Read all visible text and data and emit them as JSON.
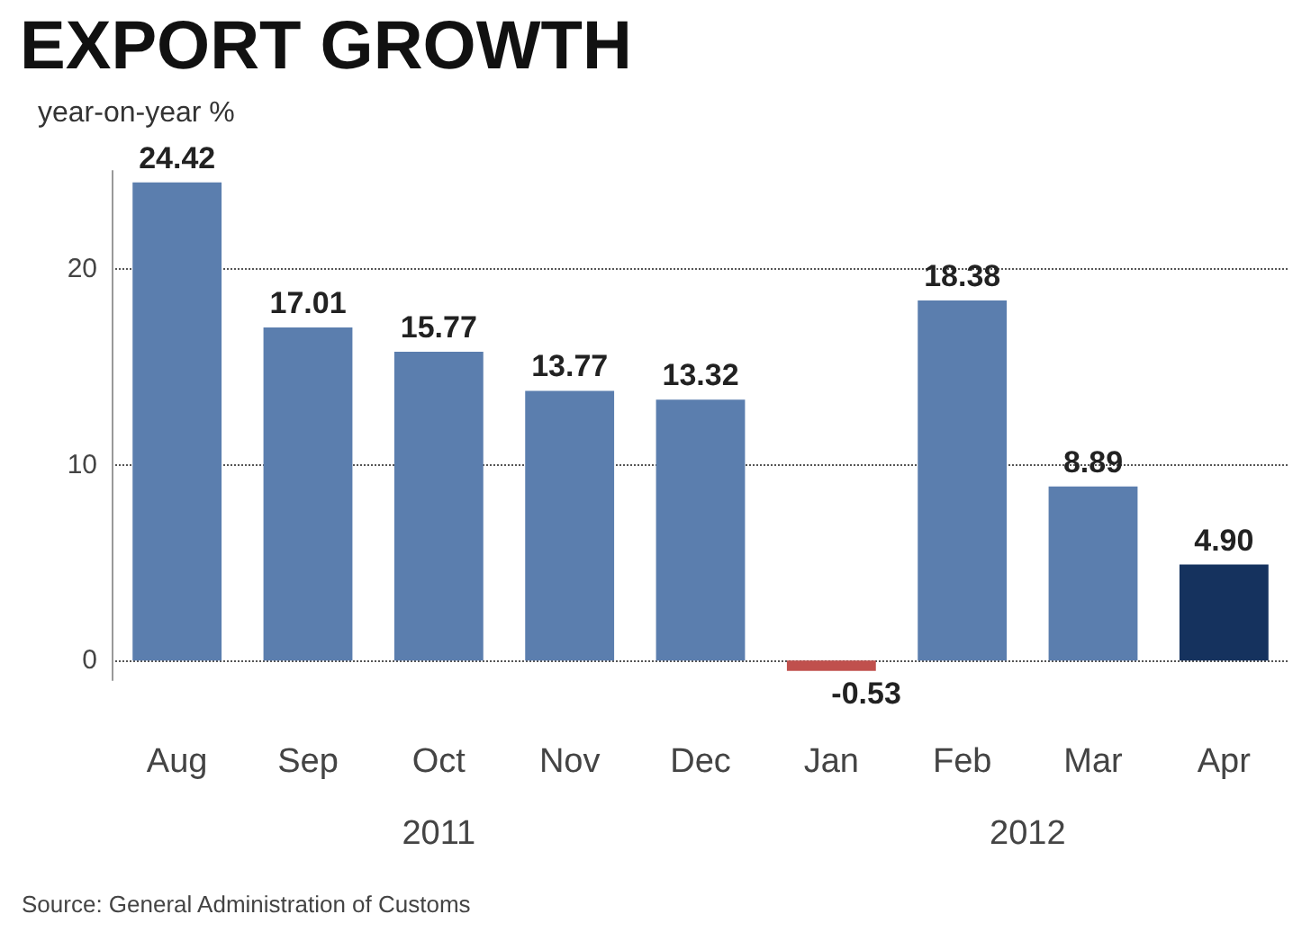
{
  "chart_data": {
    "type": "bar",
    "title": "EXPORT GROWTH",
    "subtitle": "year-on-year %",
    "categories": [
      "Aug",
      "Sep",
      "Oct",
      "Nov",
      "Dec",
      "Jan",
      "Feb",
      "Mar",
      "Apr"
    ],
    "values": [
      24.42,
      17.01,
      15.77,
      13.77,
      13.32,
      -0.53,
      18.38,
      8.89,
      4.9
    ],
    "colors": [
      "#5b7eae",
      "#5b7eae",
      "#5b7eae",
      "#5b7eae",
      "#5b7eae",
      "#c0504d",
      "#5b7eae",
      "#5b7eae",
      "#15325e"
    ],
    "value_labels": [
      "24.42",
      "17.01",
      "15.77",
      "13.77",
      "13.32",
      "-0.53",
      "18.38",
      "8.89",
      "4.90"
    ],
    "ylim": [
      -1,
      25
    ],
    "yticks": [
      0,
      10,
      20
    ],
    "grid": "y",
    "annotations": [
      "2011",
      "2012",
      "Source: General Administration of Customs"
    ]
  }
}
